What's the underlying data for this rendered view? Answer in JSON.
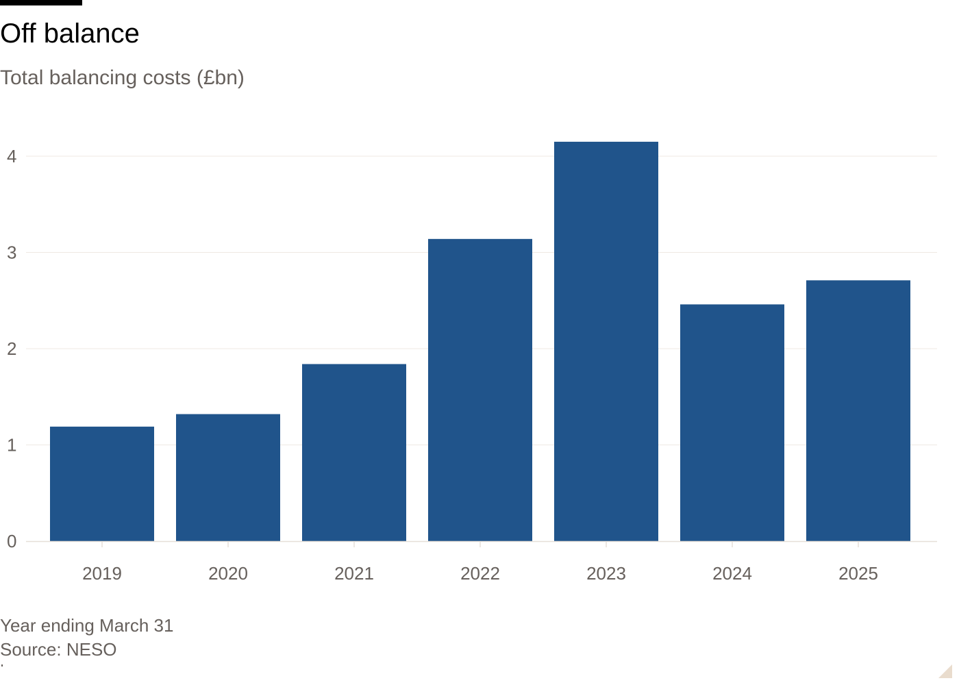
{
  "header": {
    "title": "Off balance",
    "subtitle": "Total balancing costs (£bn)"
  },
  "footer": {
    "note": "Year ending March 31",
    "source": "Source: NESO"
  },
  "colors": {
    "bar": "#20548b",
    "grid": "#efe9e3",
    "axis_text": "#66605c",
    "title": "#000000",
    "top_bar": "#000000"
  },
  "chart_data": {
    "type": "bar",
    "title": "Off balance",
    "subtitle": "Total balancing costs (£bn)",
    "xlabel": "",
    "ylabel": "",
    "categories": [
      "2019",
      "2020",
      "2021",
      "2022",
      "2023",
      "2024",
      "2025"
    ],
    "values": [
      1.19,
      1.32,
      1.84,
      3.14,
      4.15,
      2.46,
      2.71
    ],
    "ylim": [
      0,
      4.3
    ],
    "yticks": [
      0,
      1,
      2,
      3,
      4
    ],
    "grid": true,
    "legend": "none"
  }
}
